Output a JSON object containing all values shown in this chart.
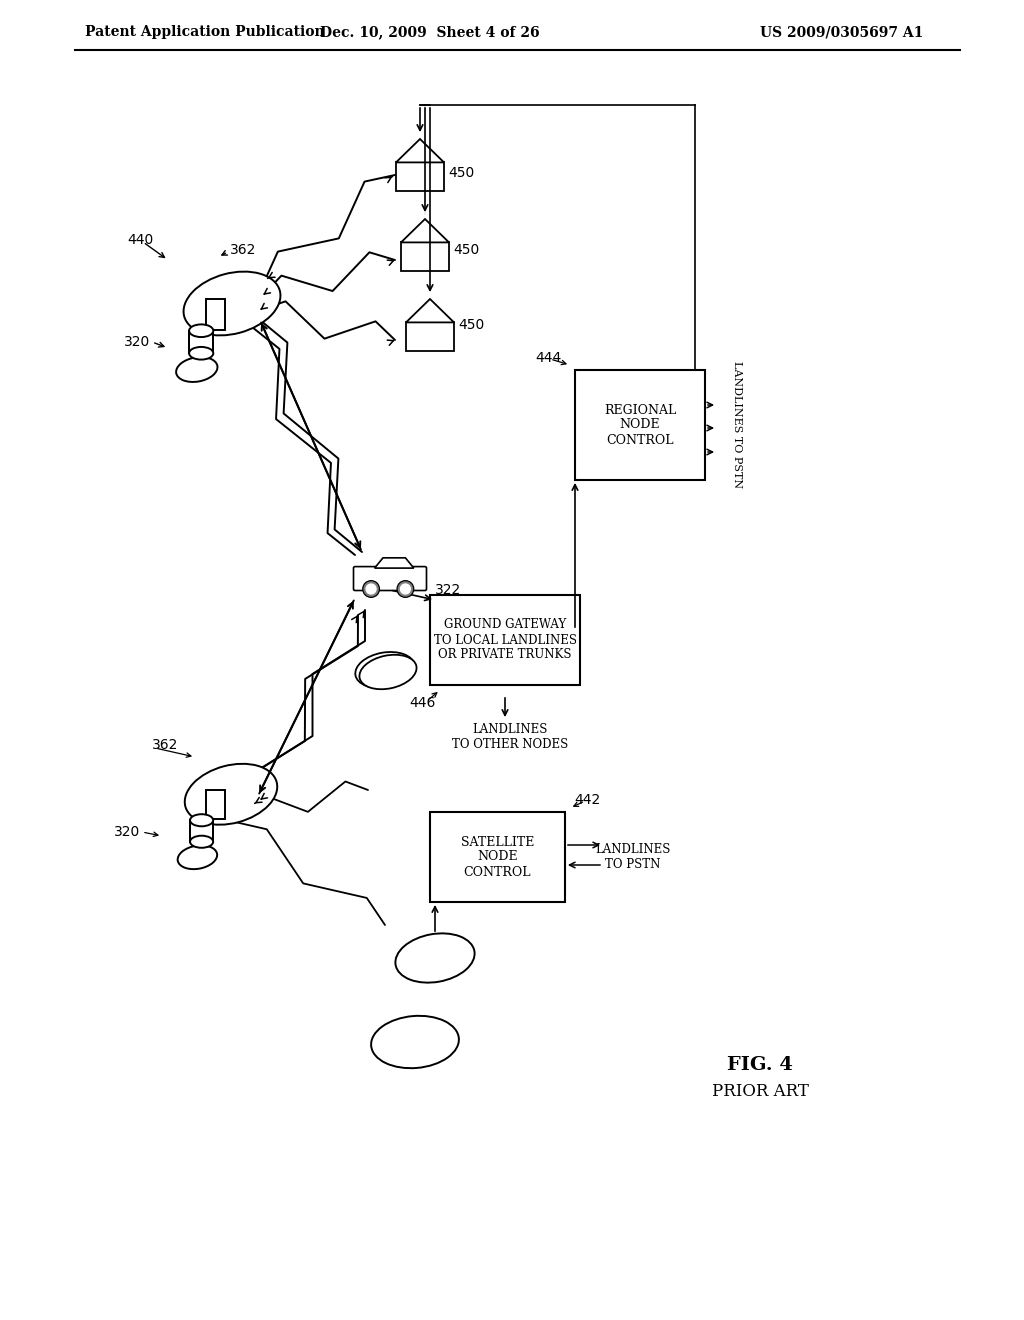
{
  "bg_color": "#ffffff",
  "header_left": "Patent Application Publication",
  "header_mid": "Dec. 10, 2009  Sheet 4 of 26",
  "header_right": "US 2009/0305697 A1",
  "fig_label": "FIG. 4",
  "fig_sublabel": "PRIOR ART",
  "label_440": "440",
  "label_362_top": "362",
  "label_320_top": "320",
  "label_322": "322",
  "label_450_1": "450",
  "label_450_2": "450",
  "label_450_3": "450",
  "label_446": "446",
  "label_444": "444",
  "label_362_bot": "362",
  "label_320_bot": "320",
  "label_442": "442",
  "box_gateway_text": "GROUND GATEWAY\nTO LOCAL LANDLINES\nOR PRIVATE TRUNKS",
  "box_regional_text": "REGIONAL\nNODE\nCONTROL",
  "box_satellite_text": "SATELLITE\nNODE\nCONTROL",
  "text_landlines_other": "LANDLINES\nTO OTHER NODES",
  "text_landlines_pstn_right": "LANDLINES TO PSTN",
  "text_landlines_pstn_bot": "LANDLINES\nTO PSTN"
}
